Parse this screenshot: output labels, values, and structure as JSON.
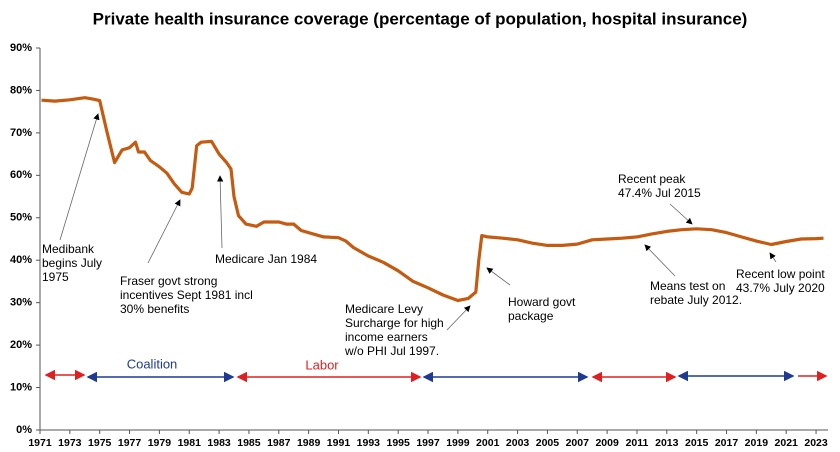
{
  "chart_data": {
    "type": "line",
    "title": "Private health insurance coverage (percentage of population, hospital insurance)",
    "series": [
      {
        "name": "Private health insurance coverage",
        "color": "#c55a11",
        "x": [
          1971.1,
          1972,
          1973,
          1974,
          1974.5,
          1975,
          1975.5,
          1976,
          1976.5,
          1977,
          1977.4,
          1977.6,
          1978,
          1978.4,
          1979,
          1979.5,
          1980,
          1980.5,
          1981,
          1981.2,
          1981.5,
          1981.8,
          1982.5,
          1983,
          1983.5,
          1983.8,
          1984,
          1984.3,
          1984.8,
          1985.5,
          1986,
          1987,
          1987.5,
          1988,
          1988.5,
          1989.5,
          1990,
          1991,
          1991.5,
          1992,
          1993,
          1994,
          1995,
          1996,
          1997,
          1998,
          1999,
          1999.7,
          2000.2,
          2000.4,
          2000.6,
          2001,
          2002,
          2003,
          2004,
          2005,
          2006,
          2007,
          2008,
          2009,
          2010,
          2011,
          2012,
          2013,
          2014,
          2015,
          2016,
          2017,
          2018,
          2019,
          2020,
          2021,
          2022,
          2023,
          2023.5
        ],
        "values": [
          77.7,
          77.5,
          77.8,
          78.3,
          78.0,
          77.6,
          70,
          63,
          66,
          66.5,
          67.8,
          65.5,
          65.5,
          63.5,
          62,
          60.5,
          58,
          56,
          55.6,
          57,
          67,
          67.8,
          68,
          65,
          63,
          61.5,
          55,
          50.5,
          48.5,
          48,
          49,
          49,
          48.5,
          48.5,
          47,
          46,
          45.5,
          45.3,
          44.5,
          43,
          41,
          39.5,
          37.5,
          35,
          33.5,
          31.8,
          30.5,
          31,
          32.5,
          40,
          45.8,
          45.5,
          45.2,
          44.8,
          44,
          43.5,
          43.5,
          43.8,
          44.8,
          45,
          45.2,
          45.5,
          46.2,
          46.8,
          47.2,
          47.4,
          47.2,
          46.5,
          45.5,
          44.5,
          43.7,
          44.4,
          45,
          45.1,
          45.2
        ]
      }
    ],
    "xlim": [
      1971,
      2023.8
    ],
    "xticks": [
      1971,
      1973,
      1975,
      1977,
      1979,
      1981,
      1983,
      1985,
      1987,
      1989,
      1991,
      1993,
      1995,
      1997,
      1999,
      2001,
      2003,
      2005,
      2007,
      2009,
      2011,
      2013,
      2015,
      2017,
      2019,
      2021,
      2023
    ],
    "ylim": [
      0,
      90
    ],
    "yticks": [
      {
        "value": 0,
        "label": "0%"
      },
      {
        "value": 10,
        "label": "10%"
      },
      {
        "value": 20,
        "label": "20%"
      },
      {
        "value": 30,
        "label": "30%"
      },
      {
        "value": 40,
        "label": "40%"
      },
      {
        "value": 50,
        "label": "50%"
      },
      {
        "value": 60,
        "label": "60%"
      },
      {
        "value": 70,
        "label": "70%"
      },
      {
        "value": 80,
        "label": "80%"
      },
      {
        "value": 90,
        "label": "90%"
      }
    ],
    "grid": false,
    "annotations": [
      {
        "lines": [
          "Medibank",
          "begins July",
          "1975"
        ]
      },
      {
        "lines": [
          "Fraser govt strong",
          "incentives Sept 1981 incl",
          "30% benefits"
        ]
      },
      {
        "lines": [
          "Medicare Jan 1984"
        ]
      },
      {
        "lines": [
          "Medicare Levy",
          "Surcharge for high",
          "income earners",
          "w/o PHI Jul 1997."
        ]
      },
      {
        "lines": [
          "Howard govt",
          "package"
        ]
      },
      {
        "lines": [
          "Means test on",
          "rebate July 2012."
        ]
      },
      {
        "lines": [
          "Recent peak",
          "47.4% Jul 2015"
        ]
      },
      {
        "lines": [
          "Recent low point",
          "43.7% July 2020"
        ]
      }
    ],
    "government_labels": [
      "Coalition",
      "Labor"
    ]
  }
}
